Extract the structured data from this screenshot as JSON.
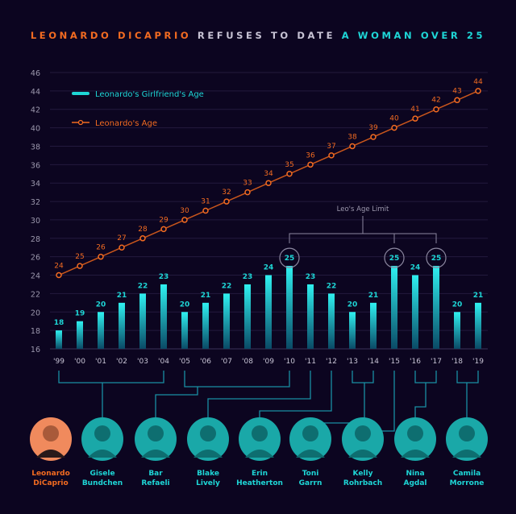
{
  "title": {
    "part1": "LEONARDO DICAPRIO",
    "part2": "REFUSES TO DATE",
    "part3": "A WOMAN OVER 25"
  },
  "colors": {
    "orange": "#f26b21",
    "cyan": "#1ed6d6",
    "grey": "#c7c3d4",
    "bg": "#0c0520"
  },
  "annotation": "Leo's Age Limit",
  "chart_data": {
    "type": "bar+line",
    "categories": [
      "'99",
      "'00",
      "'01",
      "'02",
      "'03",
      "'04",
      "'05",
      "'06",
      "'07",
      "'08",
      "'09",
      "'10",
      "'11",
      "'12",
      "'13",
      "'14",
      "'15",
      "'16",
      "'17",
      "'18",
      "'19"
    ],
    "ylim": [
      16,
      46
    ],
    "yticks": [
      16,
      18,
      20,
      22,
      24,
      26,
      28,
      30,
      32,
      34,
      36,
      38,
      40,
      42,
      44,
      46
    ],
    "grid": true,
    "legend_position": "top-left",
    "series": [
      {
        "name": "Leonardo's Girlfriend's Age",
        "type": "bar",
        "values": [
          18,
          19,
          20,
          21,
          22,
          23,
          20,
          21,
          22,
          23,
          24,
          25,
          23,
          22,
          20,
          21,
          25,
          24,
          25,
          20,
          21
        ]
      },
      {
        "name": "Leonardo's Age",
        "type": "line",
        "values": [
          24,
          25,
          26,
          27,
          28,
          29,
          30,
          31,
          32,
          33,
          34,
          35,
          36,
          37,
          38,
          39,
          40,
          41,
          42,
          43,
          44
        ]
      }
    ]
  },
  "people": [
    {
      "name1": "Leonardo",
      "name2": "DiCaprio",
      "highlight": true
    },
    {
      "name1": "Gisele",
      "name2": "Bundchen"
    },
    {
      "name1": "Bar",
      "name2": "Refaeli"
    },
    {
      "name1": "Blake",
      "name2": "Lively"
    },
    {
      "name1": "Erin",
      "name2": "Heatherton"
    },
    {
      "name1": "Toni",
      "name2": "Garrn"
    },
    {
      "name1": "Kelly",
      "name2": "Rohrbach"
    },
    {
      "name1": "Nina",
      "name2": "Agdal"
    },
    {
      "name1": "Camila",
      "name2": "Morrone"
    }
  ]
}
